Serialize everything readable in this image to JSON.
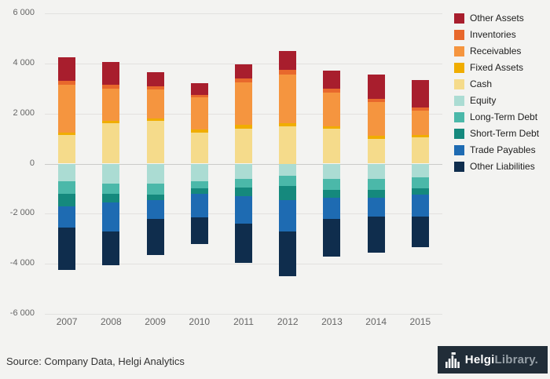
{
  "chart_data": {
    "type": "bar",
    "stacked": true,
    "title": "",
    "categories": [
      "2007",
      "2008",
      "2009",
      "2010",
      "2011",
      "2012",
      "2013",
      "2014",
      "2015"
    ],
    "ylim": [
      -6000,
      6000
    ],
    "ytick_interval": 2000,
    "ytick_labels": [
      "6 000",
      "4 000",
      "2 000",
      "0",
      "-2 000",
      "-4 000",
      "-6 000"
    ],
    "grid": true,
    "legend_position": "right-top",
    "legend_order": [
      "Other Assets",
      "Inventories",
      "Receivables",
      "Fixed Assets",
      "Cash",
      "Equity",
      "Long-Term Debt",
      "Short-Term Debt",
      "Trade Payables",
      "Other Liabilities"
    ],
    "series": [
      {
        "name": "Cash",
        "color": "#f5db8b",
        "values": [
          1150,
          1600,
          1700,
          1250,
          1400,
          1500,
          1400,
          1000,
          1050
        ]
      },
      {
        "name": "Fixed Assets",
        "color": "#f0ad00",
        "values": [
          100,
          100,
          100,
          100,
          150,
          100,
          100,
          100,
          100
        ]
      },
      {
        "name": "Receivables",
        "color": "#f5953f",
        "values": [
          1900,
          1300,
          1150,
          1300,
          1700,
          1950,
          1350,
          1350,
          950
        ]
      },
      {
        "name": "Inventories",
        "color": "#e8682c",
        "values": [
          150,
          150,
          150,
          100,
          150,
          200,
          150,
          150,
          150
        ]
      },
      {
        "name": "Other Assets",
        "color": "#a81e2d",
        "values": [
          950,
          900,
          550,
          450,
          550,
          750,
          700,
          950,
          1100
        ]
      },
      {
        "name": "Equity",
        "color": "#abdcd3",
        "values": [
          -700,
          -800,
          -800,
          -700,
          -600,
          -500,
          -600,
          -600,
          -550
        ]
      },
      {
        "name": "Long-Term Debt",
        "color": "#4bb8a9",
        "values": [
          -500,
          -400,
          -450,
          -300,
          -350,
          -400,
          -450,
          -450,
          -450
        ]
      },
      {
        "name": "Short-Term Debt",
        "color": "#15897d",
        "values": [
          -500,
          -350,
          -200,
          -200,
          -350,
          -550,
          -300,
          -300,
          -250
        ]
      },
      {
        "name": "Trade Payables",
        "color": "#1e6bb2",
        "values": [
          -850,
          -1150,
          -750,
          -950,
          -1100,
          -1250,
          -850,
          -750,
          -850
        ]
      },
      {
        "name": "Other Liabilities",
        "color": "#0f2d4d",
        "values": [
          -1700,
          -1350,
          -1450,
          -1050,
          -1550,
          -1800,
          -1500,
          -1450,
          -1250
        ]
      }
    ]
  },
  "footer": {
    "source": "Source: Company Data, Helgi Analytics",
    "logo": {
      "brand_primary": "Helgi",
      "brand_secondary": "Library."
    }
  }
}
